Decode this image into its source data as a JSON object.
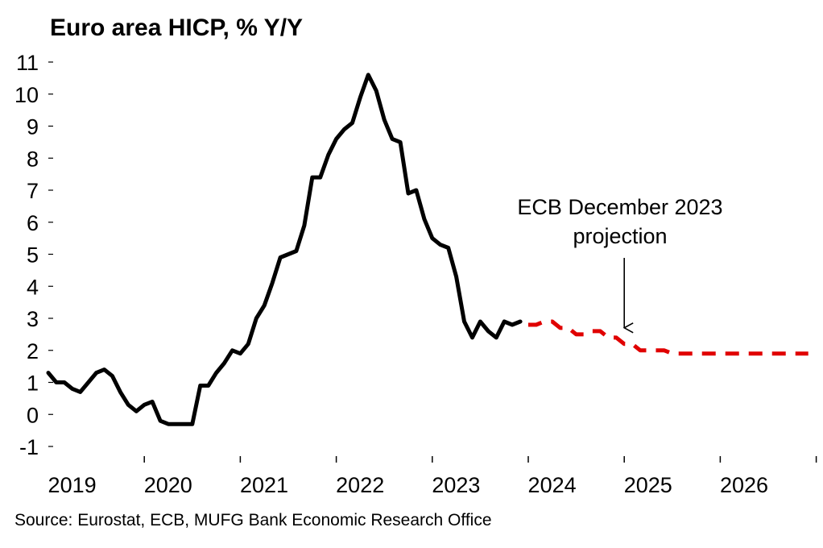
{
  "chart_data": {
    "type": "line",
    "title": "Euro area HICP, % Y/Y",
    "xlabel": "",
    "ylabel": "",
    "ylim": [
      -1,
      11
    ],
    "y_ticks": [
      -1,
      0,
      1,
      2,
      3,
      4,
      5,
      6,
      7,
      8,
      9,
      10,
      11
    ],
    "x_ticks": [
      "2019",
      "2020",
      "2021",
      "2022",
      "2023",
      "2024",
      "2025",
      "2026"
    ],
    "grid": false,
    "legend": "none",
    "series": [
      {
        "style": "solid",
        "color": "#000000",
        "x": [
          "2019-01",
          "2019-02",
          "2019-03",
          "2019-04",
          "2019-05",
          "2019-06",
          "2019-07",
          "2019-08",
          "2019-09",
          "2019-10",
          "2019-11",
          "2019-12",
          "2020-01",
          "2020-02",
          "2020-03",
          "2020-04",
          "2020-05",
          "2020-06",
          "2020-07",
          "2020-08",
          "2020-09",
          "2020-10",
          "2020-11",
          "2020-12",
          "2021-01",
          "2021-02",
          "2021-03",
          "2021-04",
          "2021-05",
          "2021-06",
          "2021-07",
          "2021-08",
          "2021-09",
          "2021-10",
          "2021-11",
          "2021-12",
          "2022-01",
          "2022-02",
          "2022-03",
          "2022-04",
          "2022-05",
          "2022-06",
          "2022-07",
          "2022-08",
          "2022-09",
          "2022-10",
          "2022-11",
          "2022-12",
          "2023-01",
          "2023-02",
          "2023-03",
          "2023-04",
          "2023-05",
          "2023-06",
          "2023-07",
          "2023-08",
          "2023-09",
          "2023-10",
          "2023-11",
          "2023-12"
        ],
        "values": [
          1.3,
          1.0,
          1.0,
          0.8,
          0.7,
          1.0,
          1.3,
          1.4,
          1.2,
          0.7,
          0.3,
          0.1,
          0.3,
          0.4,
          -0.2,
          -0.3,
          -0.3,
          -0.3,
          -0.3,
          0.9,
          0.9,
          1.3,
          1.6,
          2.0,
          1.9,
          2.2,
          3.0,
          3.4,
          4.1,
          4.9,
          5.0,
          5.1,
          5.9,
          7.4,
          7.4,
          8.1,
          8.6,
          8.9,
          9.1,
          9.9,
          10.6,
          10.1,
          9.2,
          8.6,
          8.5,
          6.9,
          7.0,
          6.1,
          5.5,
          5.3,
          5.2,
          4.3,
          2.9,
          2.4,
          2.9,
          2.6,
          2.4,
          2.9,
          2.8,
          2.9
        ]
      },
      {
        "style": "dashed",
        "color": "#e00000",
        "x": [
          "2024-01",
          "2024-02",
          "2024-03",
          "2024-04",
          "2024-05",
          "2024-06",
          "2024-07",
          "2024-08",
          "2024-09",
          "2024-10",
          "2024-11",
          "2024-12",
          "2025-01",
          "2025-02",
          "2025-03",
          "2025-04",
          "2025-05",
          "2025-06",
          "2025-07",
          "2025-08",
          "2025-09",
          "2025-10",
          "2025-11",
          "2025-12",
          "2026-01",
          "2026-02",
          "2026-03",
          "2026-04",
          "2026-05",
          "2026-06",
          "2026-07",
          "2026-08",
          "2026-09",
          "2026-10",
          "2026-11",
          "2026-12"
        ],
        "values": [
          2.8,
          2.8,
          2.9,
          2.9,
          2.7,
          2.7,
          2.5,
          2.5,
          2.6,
          2.6,
          2.4,
          2.4,
          2.2,
          2.2,
          2.0,
          2.0,
          2.0,
          2.0,
          1.9,
          1.9,
          1.9,
          1.9,
          1.9,
          1.9,
          1.9,
          1.9,
          1.9,
          1.9,
          1.9,
          1.9,
          1.9,
          1.9,
          1.9,
          1.9,
          1.9,
          1.9
        ]
      }
    ],
    "annotations": [
      {
        "lines": [
          "ECB December 2023",
          "projection"
        ],
        "points_to": "2025-01"
      }
    ]
  },
  "source": "Source: Eurostat, ECB, MUFG Bank Economic Research Office"
}
